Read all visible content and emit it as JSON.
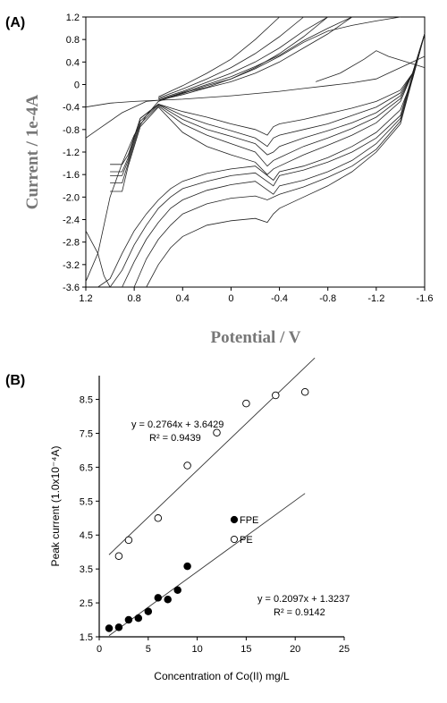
{
  "chart_data": [
    {
      "panel_label": "(A)",
      "type": "line",
      "xlabel": "Potential / V",
      "ylabel": "Current / 1e-4A",
      "xlim": [
        1.2,
        -1.6
      ],
      "ylim": [
        -3.6,
        1.2
      ],
      "x_ticks": [
        1.2,
        0.8,
        0.4,
        0,
        -0.4,
        -0.8,
        -1.2,
        -1.6
      ],
      "x_tick_labels": [
        "1.2",
        "0.8",
        "0.4",
        "0",
        "-0.4",
        "-0.8",
        "-1.2",
        "-1.6"
      ],
      "y_ticks": [
        1.2,
        0.8,
        0.4,
        0,
        -0.4,
        -0.8,
        -1.2,
        -1.6,
        -2.0,
        -2.4,
        -2.8,
        -3.2,
        -3.6
      ],
      "y_tick_labels": [
        "1.2",
        "0.8",
        "0.4",
        "0",
        "-0.4",
        "-0.8",
        "-1.2",
        "-1.6",
        "-2.0",
        "-2.4",
        "-2.8",
        "-3.2",
        "-3.6"
      ],
      "grid": false,
      "series": [
        {
          "x": [
            1.2,
            1.0,
            0.8,
            0.6,
            0.4,
            0.2,
            0.0,
            -0.2,
            -0.4,
            -0.6,
            -0.8,
            -1.0,
            -1.2,
            -1.3,
            -1.4,
            -1.6
          ],
          "y": [
            -0.4,
            -0.33,
            -0.3,
            -0.28,
            -0.26,
            -0.23,
            -0.2,
            -0.16,
            -0.12,
            -0.07,
            -0.02,
            0.03,
            0.1,
            0.2,
            0.3,
            0.5
          ]
        },
        {
          "x": [
            -0.7,
            -0.9,
            -1.1,
            -1.2,
            -1.3,
            -1.45,
            -1.6
          ],
          "y": [
            0.05,
            0.2,
            0.45,
            0.6,
            0.5,
            0.4,
            0.3
          ]
        },
        {
          "x": [
            1.2,
            1.1,
            1.0,
            0.9,
            0.8,
            0.7,
            0.6,
            0.4,
            0.2,
            0.0,
            -0.2,
            -0.4,
            -0.6,
            -0.8
          ],
          "y": [
            -3.5,
            -3.0,
            -2.0,
            -1.4,
            -0.9,
            -0.55,
            -0.3,
            -0.15,
            -0.05,
            0.1,
            0.3,
            0.55,
            0.85,
            1.2
          ]
        },
        {
          "x": [
            1.2,
            1.1,
            0.9,
            0.7,
            0.6,
            0.4,
            0.2,
            0.0,
            -0.2,
            -0.4,
            -0.6,
            -0.8,
            -1.0
          ],
          "y": [
            -0.95,
            -0.8,
            -0.5,
            -0.3,
            -0.28,
            -0.18,
            -0.06,
            0.05,
            0.2,
            0.4,
            0.65,
            0.9,
            1.2
          ]
        },
        {
          "x": [
            0.6,
            0.4,
            0.2,
            0.0,
            -0.2,
            -0.4,
            -0.6,
            -0.8,
            -1.0,
            -1.2,
            -1.4
          ],
          "y": [
            -0.28,
            -0.16,
            -0.02,
            0.1,
            0.28,
            0.5,
            0.75,
            0.95,
            1.05,
            1.13,
            1.2
          ]
        },
        {
          "x": [
            0.6,
            0.4,
            0.2,
            0.0,
            -0.2,
            -0.4,
            -0.6,
            -0.8,
            -1.0
          ],
          "y": [
            -0.28,
            -0.14,
            0.0,
            0.14,
            0.32,
            0.52,
            0.78,
            1.0,
            1.2
          ]
        },
        {
          "x": [
            0.6,
            0.4,
            0.2,
            0.0,
            -0.2,
            -0.4,
            -0.6,
            -0.8
          ],
          "y": [
            -0.26,
            -0.12,
            0.04,
            0.2,
            0.4,
            0.65,
            0.95,
            1.2
          ]
        },
        {
          "x": [
            0.6,
            0.4,
            0.2,
            0.0,
            -0.2,
            -0.4,
            -0.6
          ],
          "y": [
            -0.24,
            -0.08,
            0.1,
            0.3,
            0.55,
            0.85,
            1.2
          ]
        },
        {
          "x": [
            0.6,
            0.4,
            0.2,
            0.0,
            -0.2,
            -0.4
          ],
          "y": [
            -0.22,
            -0.02,
            0.2,
            0.45,
            0.8,
            1.2
          ]
        },
        {
          "x": [
            1.0,
            0.9,
            0.85,
            0.75,
            0.6,
            0.4,
            0.2,
            0.0,
            -0.2,
            -0.3,
            -0.35,
            -0.4,
            -0.6,
            -0.8,
            -1.0,
            -1.2,
            -1.4,
            -1.5,
            -1.6
          ],
          "y": [
            -1.42,
            -1.42,
            -1.25,
            -0.6,
            -0.35,
            -0.48,
            -0.58,
            -0.7,
            -0.8,
            -0.9,
            -0.75,
            -0.7,
            -0.62,
            -0.52,
            -0.42,
            -0.3,
            -0.1,
            0.2,
            0.9
          ]
        },
        {
          "x": [
            1.0,
            0.9,
            0.85,
            0.75,
            0.6,
            0.4,
            0.2,
            0.0,
            -0.2,
            -0.3,
            -0.35,
            -0.4,
            -0.6,
            -0.8,
            -1.0,
            -1.2,
            -1.4,
            -1.5,
            -1.6
          ],
          "y": [
            -1.55,
            -1.55,
            -1.3,
            -0.6,
            -0.35,
            -0.55,
            -0.7,
            -0.82,
            -0.95,
            -1.1,
            -0.95,
            -0.9,
            -0.8,
            -0.7,
            -0.55,
            -0.4,
            -0.15,
            0.2,
            0.9
          ]
        },
        {
          "x": [
            1.0,
            0.9,
            0.85,
            0.75,
            0.6,
            0.4,
            0.2,
            0.0,
            -0.2,
            -0.3,
            -0.35,
            -0.4,
            -0.6,
            -0.8,
            -1.0,
            -1.2,
            -1.4,
            -1.5,
            -1.6
          ],
          "y": [
            -1.62,
            -1.62,
            -1.35,
            -0.65,
            -0.36,
            -0.62,
            -0.8,
            -0.92,
            -1.05,
            -1.25,
            -1.2,
            -1.1,
            -0.95,
            -0.82,
            -0.68,
            -0.5,
            -0.2,
            0.2,
            0.9
          ]
        },
        {
          "x": [
            1.0,
            0.9,
            0.85,
            0.75,
            0.6,
            0.4,
            0.2,
            0.0,
            -0.2,
            -0.3,
            -0.35,
            -0.4,
            -0.6,
            -0.8,
            -1.0,
            -1.2,
            -1.4,
            -1.5,
            -1.6
          ],
          "y": [
            -1.75,
            -1.75,
            -1.4,
            -0.7,
            -0.38,
            -0.7,
            -0.9,
            -1.05,
            -1.2,
            -1.45,
            -1.35,
            -1.3,
            -1.1,
            -0.95,
            -0.78,
            -0.58,
            -0.25,
            0.2,
            0.9
          ]
        },
        {
          "x": [
            1.0,
            0.9,
            0.85,
            0.75,
            0.6,
            0.4,
            0.2,
            0.0,
            -0.2,
            -0.3,
            -0.35,
            -0.4,
            -0.6,
            -0.8,
            -1.0,
            -1.2,
            -1.4,
            -1.5,
            -1.6
          ],
          "y": [
            -1.9,
            -1.9,
            -1.45,
            -0.75,
            -0.4,
            -0.85,
            -1.1,
            -1.25,
            -1.38,
            -1.6,
            -1.5,
            -1.45,
            -1.25,
            -1.08,
            -0.9,
            -0.68,
            -0.3,
            0.2,
            0.9
          ]
        },
        {
          "x": [
            1.1,
            1.0,
            0.9,
            0.8,
            0.7,
            0.6,
            0.5,
            0.4,
            0.2,
            0.0,
            -0.2,
            -0.35,
            -0.4,
            -0.6,
            -0.8,
            -1.0,
            -1.2,
            -1.4,
            -1.5,
            -1.6
          ],
          "y": [
            -3.6,
            -3.45,
            -3.0,
            -2.6,
            -2.3,
            -2.05,
            -1.85,
            -1.72,
            -1.58,
            -1.5,
            -1.45,
            -1.7,
            -1.55,
            -1.45,
            -1.3,
            -1.1,
            -0.85,
            -0.45,
            0.1,
            0.9
          ]
        },
        {
          "x": [
            1.0,
            0.9,
            0.8,
            0.7,
            0.6,
            0.5,
            0.4,
            0.2,
            0.0,
            -0.2,
            -0.35,
            -0.4,
            -0.6,
            -0.8,
            -1.0,
            -1.2,
            -1.4,
            -1.6
          ],
          "y": [
            -3.6,
            -3.3,
            -2.85,
            -2.5,
            -2.2,
            -2.0,
            -1.85,
            -1.72,
            -1.62,
            -1.57,
            -1.8,
            -1.62,
            -1.52,
            -1.38,
            -1.2,
            -0.95,
            -0.55,
            0.9
          ]
        },
        {
          "x": [
            0.9,
            0.8,
            0.7,
            0.6,
            0.5,
            0.4,
            0.2,
            0.0,
            -0.2,
            -0.35,
            -0.4,
            -0.6,
            -0.8,
            -1.0,
            -1.2,
            -1.4,
            -1.6
          ],
          "y": [
            -3.6,
            -3.15,
            -2.75,
            -2.45,
            -2.2,
            -2.05,
            -1.88,
            -1.78,
            -1.72,
            -1.95,
            -1.8,
            -1.7,
            -1.55,
            -1.35,
            -1.05,
            -0.6,
            0.9
          ]
        },
        {
          "x": [
            0.8,
            0.7,
            0.6,
            0.5,
            0.4,
            0.2,
            0.0,
            -0.2,
            -0.3,
            -0.4,
            -0.6,
            -0.8,
            -1.0,
            -1.2,
            -1.4,
            -1.6
          ],
          "y": [
            -3.6,
            -3.1,
            -2.75,
            -2.5,
            -2.3,
            -2.12,
            -2.02,
            -1.98,
            -2.05,
            -1.95,
            -1.82,
            -1.65,
            -1.45,
            -1.15,
            -0.65,
            0.9
          ]
        },
        {
          "x": [
            0.7,
            0.6,
            0.5,
            0.4,
            0.2,
            0.0,
            -0.2,
            -0.3,
            -0.35,
            -0.4,
            -0.6,
            -0.8,
            -1.0,
            -1.2,
            -1.4,
            -1.6
          ],
          "y": [
            -3.6,
            -3.2,
            -2.9,
            -2.7,
            -2.5,
            -2.42,
            -2.38,
            -2.45,
            -2.3,
            -2.2,
            -2.0,
            -1.8,
            -1.55,
            -1.2,
            -0.7,
            0.9
          ]
        },
        {
          "x": [
            1.2,
            1.1,
            1.05,
            1.0
          ],
          "y": [
            -2.6,
            -3.0,
            -3.4,
            -3.6
          ]
        }
      ]
    },
    {
      "panel_label": "(B)",
      "type": "scatter",
      "xlabel": "Concentration of Co(II) mg/L",
      "ylabel": "Peak current (1.0x10⁻⁴A)",
      "xlim": [
        0,
        25
      ],
      "ylim": [
        1.5,
        9.2
      ],
      "x_ticks": [
        0,
        5,
        10,
        15,
        20,
        25
      ],
      "x_tick_labels": [
        "0",
        "5",
        "10",
        "15",
        "20",
        "25"
      ],
      "y_ticks": [
        1.5,
        2.5,
        3.5,
        4.5,
        5.5,
        6.5,
        7.5,
        8.5
      ],
      "y_tick_labels": [
        "1.5",
        "2.5",
        "3.5",
        "4.5",
        "5.5",
        "6.5",
        "7.5",
        "8.5"
      ],
      "grid": false,
      "legend": {
        "placement": "center-right",
        "entries": [
          "FPE",
          "PE"
        ]
      },
      "series": [
        {
          "name": "FPE",
          "marker": "filled",
          "x": [
            1,
            2,
            3,
            4,
            5,
            6,
            7,
            8,
            9
          ],
          "y": [
            1.75,
            1.78,
            2.0,
            2.05,
            2.25,
            2.65,
            2.6,
            2.88,
            3.58
          ]
        },
        {
          "name": "PE",
          "marker": "open",
          "x": [
            2,
            3,
            6,
            9,
            12,
            15,
            18,
            21
          ],
          "y": [
            3.88,
            4.35,
            5.0,
            6.55,
            7.52,
            8.38,
            8.62,
            8.72
          ]
        }
      ],
      "fits": [
        {
          "series": "PE",
          "slope": 0.2764,
          "intercept": 3.6429,
          "x_range": [
            1,
            22
          ],
          "equation": "y = 0.2764x + 3.6429",
          "r2_label": "R² = 0.9439"
        },
        {
          "series": "FPE",
          "slope": 0.2097,
          "intercept": 1.3237,
          "x_range": [
            1,
            21
          ],
          "equation": "y = 0.2097x + 1.3237",
          "r2_label": "R² = 0.9142"
        }
      ]
    }
  ]
}
